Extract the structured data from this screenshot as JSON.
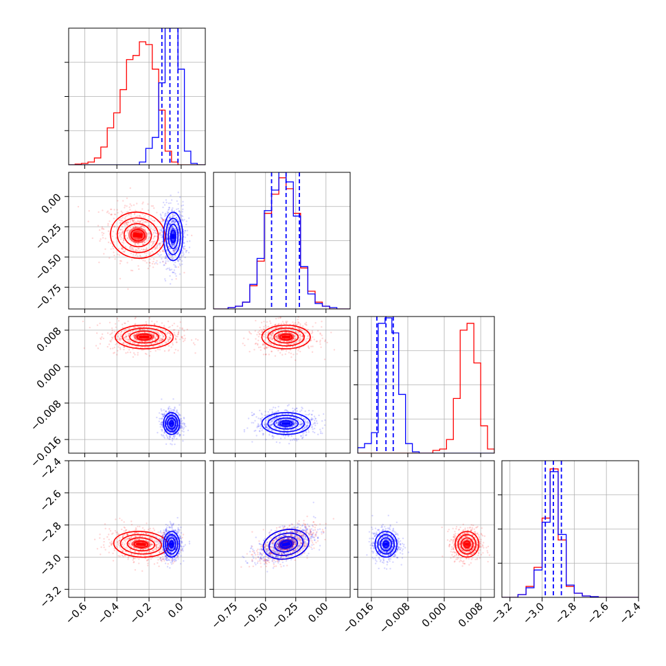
{
  "chart_data": {
    "type": "corner",
    "parameters": 4,
    "colors": {
      "series_a": "#ff0000",
      "series_b": "#0000ff"
    },
    "grid": true,
    "axes": [
      {
        "range": [
          -0.7,
          0.15
        ],
        "ticks": [
          -0.6,
          -0.4,
          -0.2,
          0.0
        ],
        "tick_labels": [
          "−0.6",
          "−0.4",
          "−0.2",
          "0.0"
        ]
      },
      {
        "range": [
          -0.93,
          0.2
        ],
        "ticks": [
          -0.75,
          -0.5,
          -0.25,
          0.0
        ],
        "tick_labels": [
          "−0.75",
          "−0.50",
          "−0.25",
          "0.00"
        ]
      },
      {
        "range": [
          -0.019,
          0.011
        ],
        "ticks": [
          -0.016,
          -0.008,
          0.0,
          0.008
        ],
        "tick_labels": [
          "−0.016",
          "−0.008",
          "0.000",
          "0.008"
        ]
      },
      {
        "range": [
          -3.25,
          -2.4
        ],
        "ticks": [
          -3.2,
          -3.0,
          -2.8,
          -2.6,
          -2.4
        ],
        "tick_labels": [
          "−3.2",
          "−3.0",
          "−2.8",
          "−2.6",
          "−2.4"
        ]
      }
    ],
    "marginals": [
      {
        "bin_edges": [
          -0.7,
          -0.66,
          -0.62,
          -0.58,
          -0.54,
          -0.5,
          -0.46,
          -0.42,
          -0.38,
          -0.34,
          -0.3,
          -0.26,
          -0.22,
          -0.18,
          -0.14,
          -0.1,
          -0.06,
          -0.02,
          0.02,
          0.06,
          0.1,
          0.15
        ],
        "red": [
          0,
          0.005,
          0.01,
          0.02,
          0.05,
          0.13,
          0.27,
          0.38,
          0.55,
          0.77,
          0.8,
          0.9,
          0.88,
          0.7,
          0.4,
          0.1,
          0.02,
          0,
          0,
          0,
          0
        ],
        "blue": [
          0,
          0,
          0,
          0,
          0,
          0,
          0,
          0,
          0,
          0,
          0,
          0.02,
          0.12,
          0.2,
          0.6,
          1.0,
          1.0,
          0.7,
          0.1,
          0.01,
          0
        ],
        "quantiles": [
          -0.12,
          -0.07,
          -0.02
        ]
      },
      {
        "bin_edges": [
          -0.93,
          -0.87,
          -0.81,
          -0.75,
          -0.69,
          -0.63,
          -0.57,
          -0.51,
          -0.45,
          -0.39,
          -0.33,
          -0.27,
          -0.21,
          -0.15,
          -0.09,
          -0.03,
          0.03,
          0.09,
          0.15,
          0.2
        ],
        "red": [
          0,
          0,
          0.01,
          0.02,
          0.05,
          0.17,
          0.35,
          0.7,
          0.84,
          0.96,
          0.88,
          0.7,
          0.3,
          0.13,
          0.05,
          0.02,
          0,
          0,
          0
        ],
        "blue": [
          0,
          0,
          0.01,
          0.02,
          0.05,
          0.18,
          0.37,
          0.72,
          0.87,
          1.0,
          0.93,
          0.68,
          0.31,
          0.11,
          0.04,
          0.02,
          0.01,
          0,
          0
        ],
        "quantiles": [
          -0.45,
          -0.33,
          -0.22
        ]
      },
      {
        "bin_edges": [
          -0.019,
          -0.0175,
          -0.016,
          -0.0145,
          -0.013,
          -0.0115,
          -0.01,
          -0.0085,
          -0.007,
          -0.0055,
          -0.004,
          -0.0025,
          -0.001,
          0.0005,
          0.002,
          0.0035,
          0.005,
          0.0065,
          0.008,
          0.0095,
          0.011
        ],
        "red": [
          0,
          0,
          0,
          0,
          0,
          0,
          0,
          0,
          0,
          0,
          0,
          0.02,
          0.03,
          0.1,
          0.4,
          0.9,
          0.95,
          0.66,
          0.2,
          0.03
        ],
        "blue": [
          0.04,
          0.07,
          0.15,
          0.95,
          0.99,
          0.88,
          0.43,
          0.07,
          0.01,
          0,
          0,
          0,
          0,
          0,
          0,
          0,
          0,
          0,
          0,
          0
        ],
        "quantiles": [
          -0.0148,
          -0.0128,
          -0.0112
        ]
      },
      {
        "bin_edges": [
          -3.25,
          -3.2,
          -3.15,
          -3.1,
          -3.05,
          -3.0,
          -2.95,
          -2.9,
          -2.85,
          -2.8,
          -2.75,
          -2.7,
          -2.65,
          -2.6,
          -2.55,
          -2.5,
          -2.45,
          -2.4
        ],
        "red": [
          0,
          0,
          0.02,
          0.08,
          0.22,
          0.58,
          0.94,
          0.42,
          0.08,
          0.03,
          0.01,
          0.005,
          0,
          0,
          0,
          0,
          0
        ],
        "blue": [
          0,
          0,
          0.02,
          0.07,
          0.2,
          0.55,
          0.92,
          0.46,
          0.09,
          0.03,
          0.01,
          0.005,
          0,
          0,
          0,
          0,
          0
        ],
        "quantiles": [
          -2.98,
          -2.93,
          -2.88
        ]
      }
    ],
    "blobs": {
      "red": [
        {
          "row": 1,
          "col": 0,
          "cx": -0.27,
          "cy": -0.32,
          "sx": 0.085,
          "sy": 0.095,
          "rho": -0.25
        },
        {
          "row": 2,
          "col": 0,
          "cx": -0.23,
          "cy": 0.0065,
          "sx": 0.09,
          "sy": 0.0013,
          "rho": 0
        },
        {
          "row": 2,
          "col": 1,
          "cx": -0.33,
          "cy": 0.0065,
          "sx": 0.1,
          "sy": 0.0013,
          "rho": 0
        },
        {
          "row": 3,
          "col": 0,
          "cx": -0.25,
          "cy": -2.92,
          "sx": 0.085,
          "sy": 0.04,
          "rho": -0.2
        },
        {
          "row": 3,
          "col": 1,
          "cx": -0.33,
          "cy": -2.92,
          "sx": 0.095,
          "sy": 0.045,
          "rho": 0.55
        },
        {
          "row": 3,
          "col": 2,
          "cx": 0.005,
          "cy": -2.92,
          "sx": 0.0013,
          "sy": 0.04,
          "rho": 0
        }
      ],
      "blue": [
        {
          "row": 1,
          "col": 0,
          "cx": -0.05,
          "cy": -0.33,
          "sx": 0.03,
          "sy": 0.1,
          "rho": 0
        },
        {
          "row": 2,
          "col": 0,
          "cx": -0.06,
          "cy": -0.0125,
          "sx": 0.025,
          "sy": 0.0012,
          "rho": 0
        },
        {
          "row": 2,
          "col": 1,
          "cx": -0.33,
          "cy": -0.0125,
          "sx": 0.1,
          "sy": 0.0012,
          "rho": 0
        },
        {
          "row": 3,
          "col": 0,
          "cx": -0.06,
          "cy": -2.92,
          "sx": 0.025,
          "sy": 0.04,
          "rho": 0
        },
        {
          "row": 3,
          "col": 1,
          "cx": -0.33,
          "cy": -2.92,
          "sx": 0.095,
          "sy": 0.045,
          "rho": 0.55
        },
        {
          "row": 3,
          "col": 2,
          "cx": -0.0128,
          "cy": -2.92,
          "sx": 0.0012,
          "sy": 0.04,
          "rho": 0
        }
      ]
    }
  }
}
